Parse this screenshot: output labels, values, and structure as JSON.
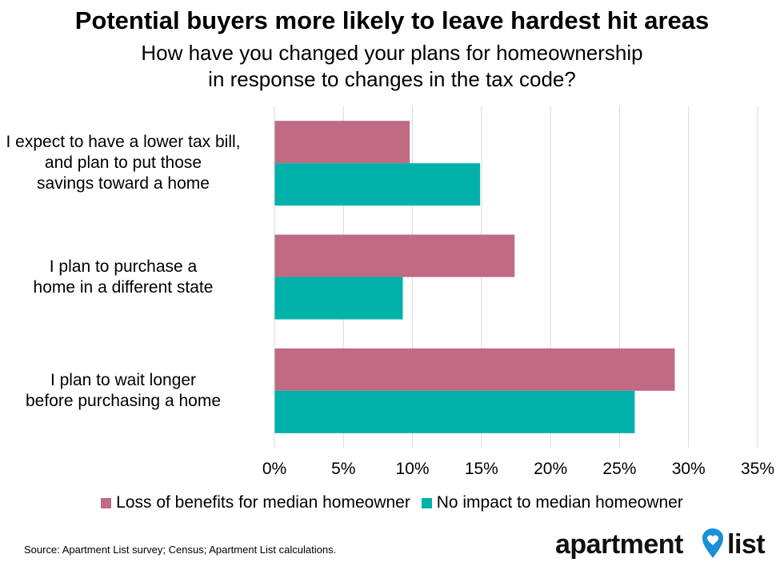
{
  "chart_data": {
    "type": "bar",
    "orientation": "horizontal",
    "title": "Potential buyers more likely to leave hardest hit areas",
    "subtitle": [
      "How have you changed your plans for homeownership",
      "in response to changes in the tax code?"
    ],
    "categories": [
      [
        "I expect to have a lower tax bill,",
        "and plan to put those",
        "savings toward a home"
      ],
      [
        "I plan to purchase a",
        "home in a different state"
      ],
      [
        "I plan to wait longer",
        "before purchasing a home"
      ]
    ],
    "series": [
      {
        "name": "Loss of benefits for median homeowner",
        "color": "#c06a84",
        "values": [
          9.8,
          17.4,
          29.0
        ]
      },
      {
        "name": "No impact to median homeowner",
        "color": "#00b2a9",
        "values": [
          14.9,
          9.3,
          26.1
        ]
      }
    ],
    "xlim": [
      0,
      35
    ],
    "ticks": [
      "0%",
      "5%",
      "10%",
      "15%",
      "20%",
      "25%",
      "30%",
      "35%"
    ],
    "grid": true,
    "legend": "bottom",
    "source": "Source: Apartment List survey; Census; Apartment List calculations."
  },
  "logo": {
    "word1": "apartment",
    "word2": "list"
  },
  "colors": {
    "grid": "#d9d9d9",
    "pin": "#1a8fd6"
  }
}
